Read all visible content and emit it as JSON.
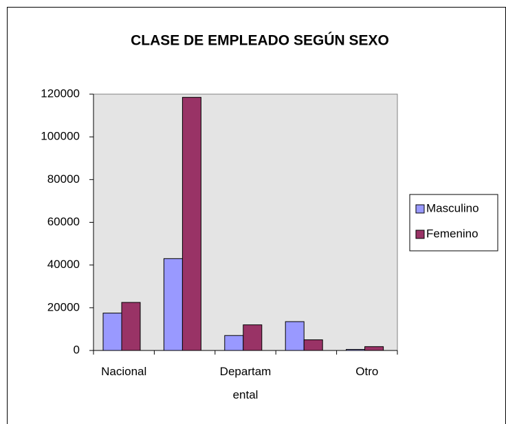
{
  "chart_data": {
    "type": "bar",
    "title": "CLASE DE EMPLEADO SEGÚN SEXO",
    "categories": [
      "Nacional",
      null,
      "Departamental",
      null,
      "Otro"
    ],
    "series": [
      {
        "name": "Masculino",
        "color": "#9999ff",
        "values": [
          17500,
          43000,
          7000,
          13500,
          500
        ]
      },
      {
        "name": "Femenino",
        "color": "#993366",
        "values": [
          22500,
          118500,
          12000,
          5000,
          1800
        ]
      }
    ],
    "ylim": [
      0,
      120000
    ],
    "yticks": [
      0,
      20000,
      40000,
      60000,
      80000,
      100000,
      120000
    ],
    "legend": "right"
  }
}
